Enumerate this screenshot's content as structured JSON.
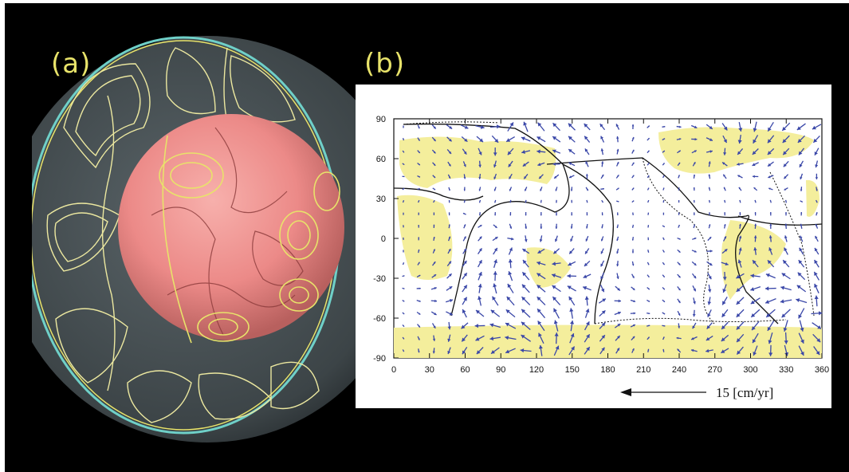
{
  "panels": {
    "a_label": "(a)",
    "b_label": "(b)"
  },
  "map": {
    "y_ticks": [
      "90",
      "60",
      "30",
      "0",
      "-30",
      "-60",
      "-90"
    ],
    "x_ticks": [
      "0",
      "30",
      "60",
      "90",
      "120",
      "150",
      "180",
      "210",
      "240",
      "270",
      "300",
      "330",
      "360"
    ],
    "scale_label": "15 [cm/yr]",
    "colors": {
      "arrow": "#3a47a8",
      "highlight": "#f4ee9c",
      "boundary": "#111111"
    }
  },
  "sphere": {
    "colors": {
      "outer_shell": "#4a5256",
      "core": "#f08a8a",
      "contour": "#e8e36a"
    }
  }
}
